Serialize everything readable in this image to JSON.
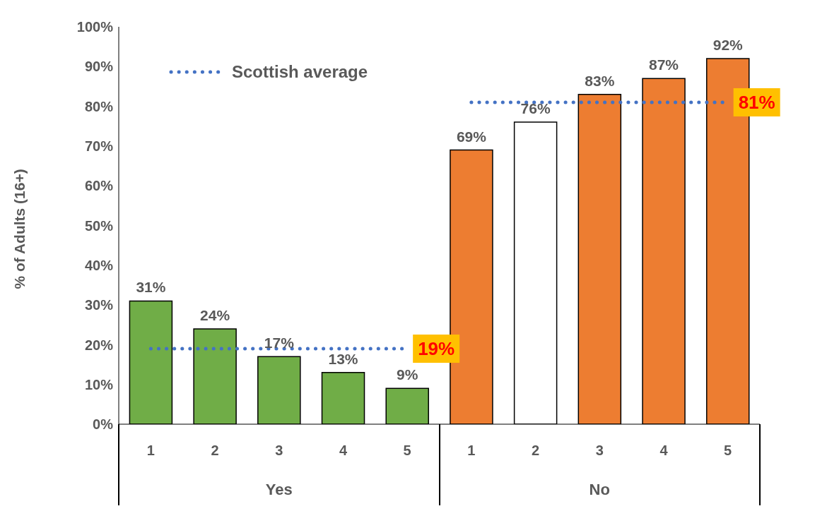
{
  "chart_data": {
    "type": "bar",
    "ylabel": "% of Adults (16+)",
    "categories": [
      "1",
      "2",
      "3",
      "4",
      "5",
      "1",
      "2",
      "3",
      "4",
      "5"
    ],
    "values": [
      31,
      24,
      17,
      13,
      9,
      69,
      76,
      83,
      87,
      92
    ],
    "value_labels": [
      "31%",
      "24%",
      "17%",
      "13%",
      "9%",
      "69%",
      "76%",
      "83%",
      "87%",
      "92%"
    ],
    "colors": [
      "#70ad47",
      "#70ad47",
      "#70ad47",
      "#70ad47",
      "#70ad47",
      "#ed7d31",
      "#ffffff",
      "#ed7d31",
      "#ed7d31",
      "#ed7d31"
    ],
    "ylim": [
      0,
      100
    ],
    "yticks": [
      {
        "value": 0,
        "label": "0%"
      },
      {
        "value": 10,
        "label": "10%"
      },
      {
        "value": 20,
        "label": "20%"
      },
      {
        "value": 30,
        "label": "30%"
      },
      {
        "value": 40,
        "label": "40%"
      },
      {
        "value": 50,
        "label": "50%"
      },
      {
        "value": 60,
        "label": "60%"
      },
      {
        "value": 70,
        "label": "70%"
      },
      {
        "value": 80,
        "label": "80%"
      },
      {
        "value": 90,
        "label": "90%"
      },
      {
        "value": 100,
        "label": "100%"
      }
    ],
    "ref_lines": [
      {
        "axis": "y",
        "value": 19,
        "label": "19%",
        "color": "#4472c4",
        "line_style": "dotted"
      },
      {
        "axis": "y",
        "value": 81,
        "label": "81%",
        "color": "#4472c4",
        "line_style": "dotted"
      }
    ],
    "legend_title": "Scottish average",
    "annotations": [
      "Yes",
      "No"
    ],
    "grid": false
  }
}
